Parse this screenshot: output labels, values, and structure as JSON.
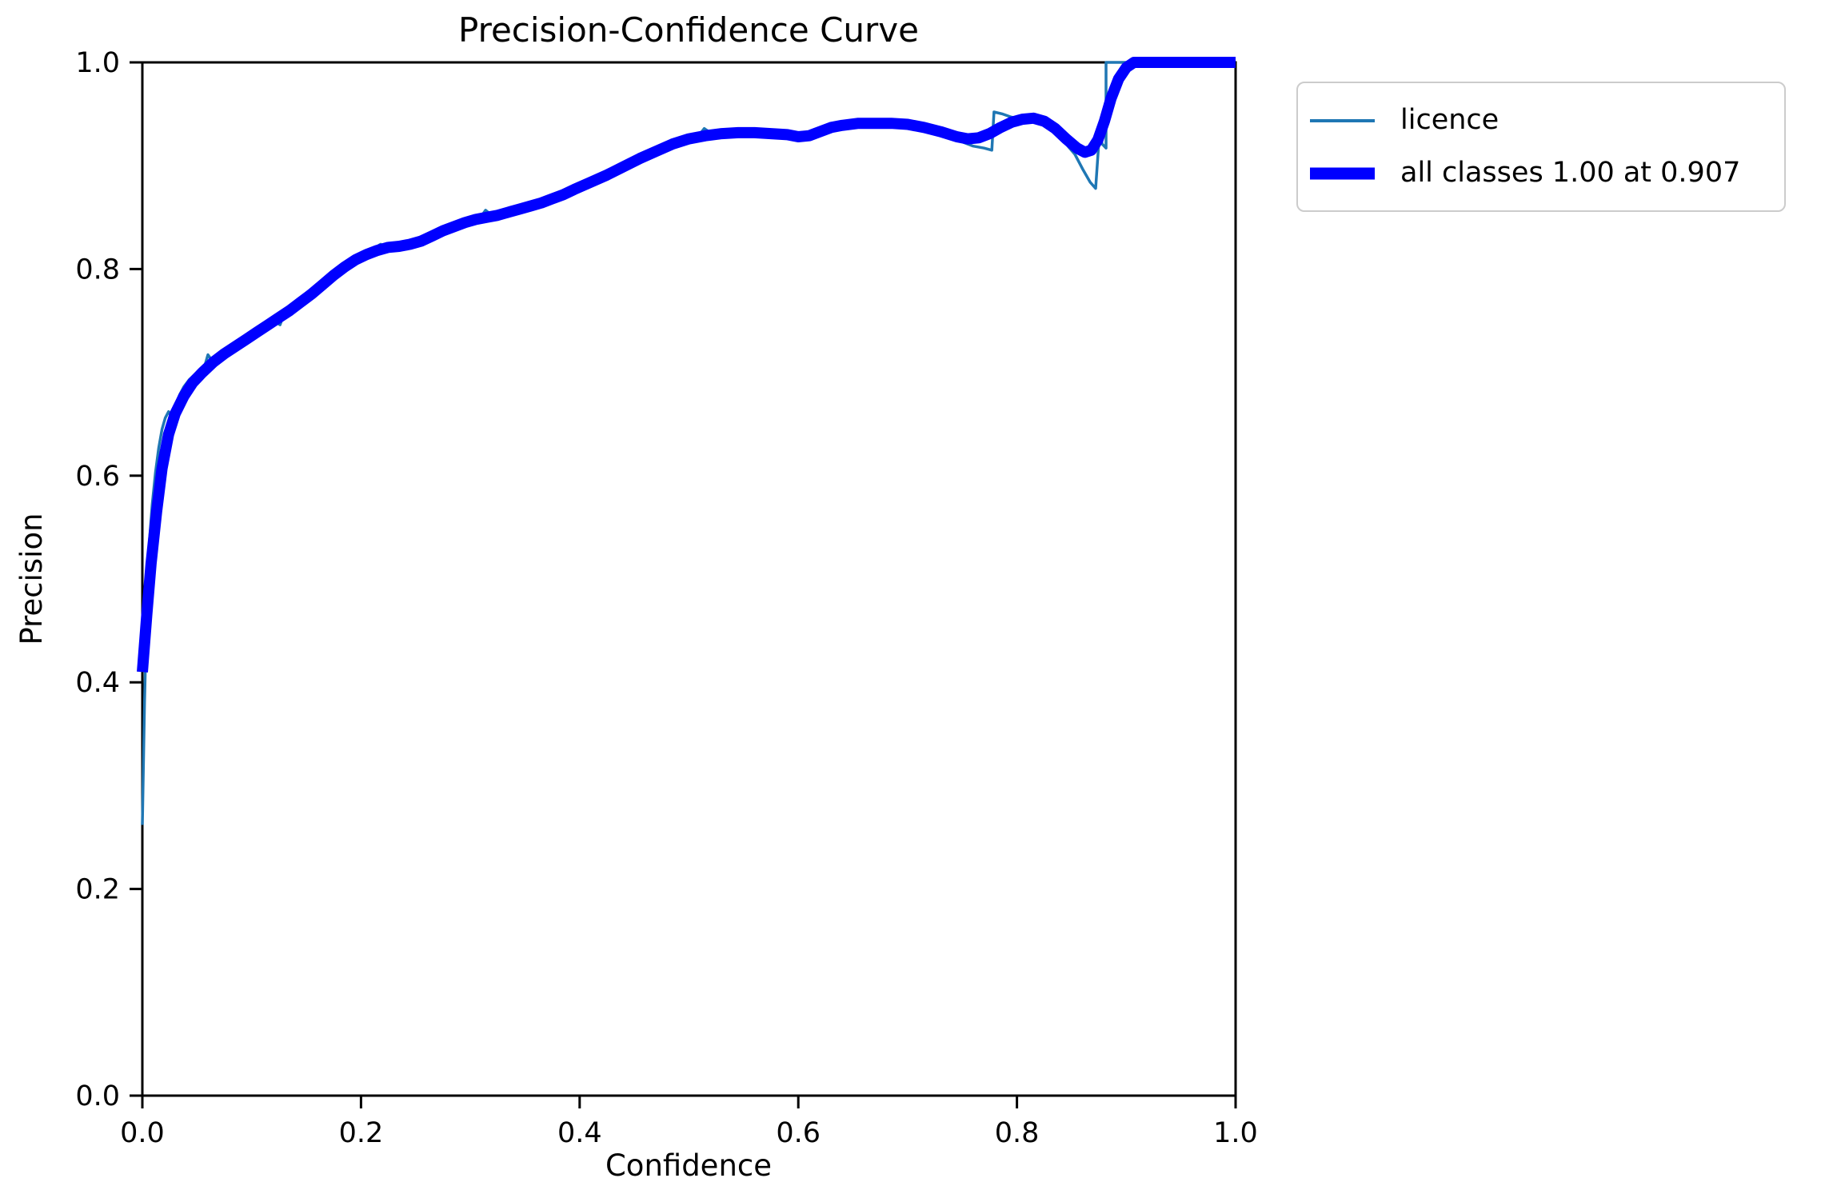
{
  "chart_data": {
    "type": "line",
    "title": "Precision-Confidence Curve",
    "xlabel": "Confidence",
    "ylabel": "Precision",
    "xlim": [
      0.0,
      1.0
    ],
    "ylim": [
      0.0,
      1.0
    ],
    "grid": false,
    "legend_position": "outside-upper-right",
    "x_ticks": {
      "values": [
        0.0,
        0.2,
        0.4,
        0.6,
        0.8,
        1.0
      ],
      "labels": [
        "0.0",
        "0.2",
        "0.4",
        "0.6",
        "0.8",
        "1.0"
      ]
    },
    "y_ticks": {
      "values": [
        0.0,
        0.2,
        0.4,
        0.6,
        0.8,
        1.0
      ],
      "labels": [
        "0.0",
        "0.2",
        "0.4",
        "0.6",
        "0.8",
        "1.0"
      ]
    },
    "series": [
      {
        "name": "licence",
        "color": "#1f77b4",
        "linewidth": 3.5,
        "points": [
          [
            0.0,
            0.262
          ],
          [
            0.002,
            0.38
          ],
          [
            0.004,
            0.47
          ],
          [
            0.006,
            0.53
          ],
          [
            0.009,
            0.572
          ],
          [
            0.012,
            0.603
          ],
          [
            0.015,
            0.627
          ],
          [
            0.018,
            0.645
          ],
          [
            0.021,
            0.656
          ],
          [
            0.024,
            0.662
          ],
          [
            0.027,
            0.657
          ],
          [
            0.03,
            0.668
          ],
          [
            0.034,
            0.678
          ],
          [
            0.038,
            0.686
          ],
          [
            0.043,
            0.693
          ],
          [
            0.048,
            0.698
          ],
          [
            0.053,
            0.702
          ],
          [
            0.057,
            0.706
          ],
          [
            0.06,
            0.717
          ],
          [
            0.064,
            0.711
          ],
          [
            0.07,
            0.715
          ],
          [
            0.078,
            0.721
          ],
          [
            0.086,
            0.727
          ],
          [
            0.094,
            0.732
          ],
          [
            0.102,
            0.738
          ],
          [
            0.112,
            0.745
          ],
          [
            0.12,
            0.75
          ],
          [
            0.126,
            0.746
          ],
          [
            0.13,
            0.758
          ],
          [
            0.14,
            0.763
          ],
          [
            0.15,
            0.772
          ],
          [
            0.16,
            0.78
          ],
          [
            0.17,
            0.79
          ],
          [
            0.18,
            0.799
          ],
          [
            0.19,
            0.807
          ],
          [
            0.2,
            0.813
          ],
          [
            0.21,
            0.819
          ],
          [
            0.218,
            0.824
          ],
          [
            0.226,
            0.818
          ],
          [
            0.236,
            0.821
          ],
          [
            0.246,
            0.824
          ],
          [
            0.256,
            0.827
          ],
          [
            0.266,
            0.83
          ],
          [
            0.276,
            0.837
          ],
          [
            0.284,
            0.844
          ],
          [
            0.292,
            0.84
          ],
          [
            0.3,
            0.844
          ],
          [
            0.308,
            0.848
          ],
          [
            0.314,
            0.857
          ],
          [
            0.322,
            0.85
          ],
          [
            0.332,
            0.854
          ],
          [
            0.342,
            0.858
          ],
          [
            0.352,
            0.861
          ],
          [
            0.362,
            0.864
          ],
          [
            0.375,
            0.869
          ],
          [
            0.39,
            0.875
          ],
          [
            0.405,
            0.882
          ],
          [
            0.42,
            0.89
          ],
          [
            0.435,
            0.897
          ],
          [
            0.45,
            0.905
          ],
          [
            0.465,
            0.912
          ],
          [
            0.48,
            0.919
          ],
          [
            0.495,
            0.925
          ],
          [
            0.508,
            0.928
          ],
          [
            0.514,
            0.936
          ],
          [
            0.522,
            0.93
          ],
          [
            0.535,
            0.931
          ],
          [
            0.55,
            0.932
          ],
          [
            0.565,
            0.931
          ],
          [
            0.58,
            0.93
          ],
          [
            0.595,
            0.928
          ],
          [
            0.605,
            0.926
          ],
          [
            0.615,
            0.928
          ],
          [
            0.624,
            0.931
          ],
          [
            0.63,
            0.941
          ],
          [
            0.638,
            0.937
          ],
          [
            0.648,
            0.94
          ],
          [
            0.66,
            0.942
          ],
          [
            0.675,
            0.941
          ],
          [
            0.69,
            0.94
          ],
          [
            0.705,
            0.938
          ],
          [
            0.72,
            0.934
          ],
          [
            0.735,
            0.929
          ],
          [
            0.75,
            0.923
          ],
          [
            0.76,
            0.919
          ],
          [
            0.77,
            0.917
          ],
          [
            0.777,
            0.915
          ],
          [
            0.779,
            0.952
          ],
          [
            0.787,
            0.95
          ],
          [
            0.795,
            0.947
          ],
          [
            0.805,
            0.945
          ],
          [
            0.815,
            0.944
          ],
          [
            0.825,
            0.94
          ],
          [
            0.835,
            0.931
          ],
          [
            0.845,
            0.921
          ],
          [
            0.853,
            0.911
          ],
          [
            0.86,
            0.897
          ],
          [
            0.867,
            0.884
          ],
          [
            0.872,
            0.878
          ],
          [
            0.8755,
            0.932
          ],
          [
            0.878,
            0.921
          ],
          [
            0.8815,
            0.917
          ],
          [
            0.8815,
            1.0
          ],
          [
            0.93,
            1.0
          ],
          [
            1.0,
            1.0
          ]
        ]
      },
      {
        "name": "all classes 1.00 at 0.907",
        "color": "#0000ff",
        "linewidth": 14,
        "points": [
          [
            0.0,
            0.41
          ],
          [
            0.004,
            0.465
          ],
          [
            0.008,
            0.515
          ],
          [
            0.013,
            0.565
          ],
          [
            0.018,
            0.607
          ],
          [
            0.024,
            0.64
          ],
          [
            0.03,
            0.66
          ],
          [
            0.038,
            0.677
          ],
          [
            0.046,
            0.69
          ],
          [
            0.055,
            0.7
          ],
          [
            0.065,
            0.71
          ],
          [
            0.075,
            0.718
          ],
          [
            0.085,
            0.725
          ],
          [
            0.095,
            0.732
          ],
          [
            0.105,
            0.739
          ],
          [
            0.115,
            0.746
          ],
          [
            0.125,
            0.753
          ],
          [
            0.135,
            0.76
          ],
          [
            0.145,
            0.768
          ],
          [
            0.155,
            0.776
          ],
          [
            0.165,
            0.785
          ],
          [
            0.175,
            0.794
          ],
          [
            0.185,
            0.802
          ],
          [
            0.195,
            0.809
          ],
          [
            0.205,
            0.814
          ],
          [
            0.215,
            0.818
          ],
          [
            0.225,
            0.821
          ],
          [
            0.235,
            0.822
          ],
          [
            0.245,
            0.824
          ],
          [
            0.255,
            0.827
          ],
          [
            0.265,
            0.832
          ],
          [
            0.275,
            0.837
          ],
          [
            0.285,
            0.841
          ],
          [
            0.295,
            0.845
          ],
          [
            0.305,
            0.848
          ],
          [
            0.315,
            0.85
          ],
          [
            0.325,
            0.852
          ],
          [
            0.335,
            0.855
          ],
          [
            0.345,
            0.858
          ],
          [
            0.355,
            0.861
          ],
          [
            0.365,
            0.864
          ],
          [
            0.375,
            0.868
          ],
          [
            0.385,
            0.872
          ],
          [
            0.395,
            0.877
          ],
          [
            0.41,
            0.884
          ],
          [
            0.425,
            0.891
          ],
          [
            0.44,
            0.899
          ],
          [
            0.455,
            0.907
          ],
          [
            0.47,
            0.914
          ],
          [
            0.485,
            0.921
          ],
          [
            0.5,
            0.926
          ],
          [
            0.515,
            0.929
          ],
          [
            0.53,
            0.931
          ],
          [
            0.545,
            0.932
          ],
          [
            0.56,
            0.932
          ],
          [
            0.575,
            0.931
          ],
          [
            0.59,
            0.93
          ],
          [
            0.6,
            0.928
          ],
          [
            0.61,
            0.929
          ],
          [
            0.62,
            0.933
          ],
          [
            0.63,
            0.937
          ],
          [
            0.64,
            0.939
          ],
          [
            0.655,
            0.941
          ],
          [
            0.67,
            0.941
          ],
          [
            0.685,
            0.941
          ],
          [
            0.7,
            0.94
          ],
          [
            0.715,
            0.937
          ],
          [
            0.73,
            0.933
          ],
          [
            0.745,
            0.928
          ],
          [
            0.755,
            0.926
          ],
          [
            0.765,
            0.927
          ],
          [
            0.775,
            0.931
          ],
          [
            0.785,
            0.937
          ],
          [
            0.795,
            0.942
          ],
          [
            0.805,
            0.945
          ],
          [
            0.815,
            0.946
          ],
          [
            0.825,
            0.943
          ],
          [
            0.835,
            0.936
          ],
          [
            0.845,
            0.926
          ],
          [
            0.855,
            0.917
          ],
          [
            0.862,
            0.913
          ],
          [
            0.868,
            0.915
          ],
          [
            0.874,
            0.925
          ],
          [
            0.88,
            0.943
          ],
          [
            0.886,
            0.965
          ],
          [
            0.893,
            0.984
          ],
          [
            0.9,
            0.995
          ],
          [
            0.907,
            1.0
          ],
          [
            1.0,
            1.0
          ]
        ]
      }
    ],
    "legend": {
      "items": [
        {
          "label": "licence"
        },
        {
          "label": "all classes 1.00 at 0.907"
        }
      ]
    }
  }
}
